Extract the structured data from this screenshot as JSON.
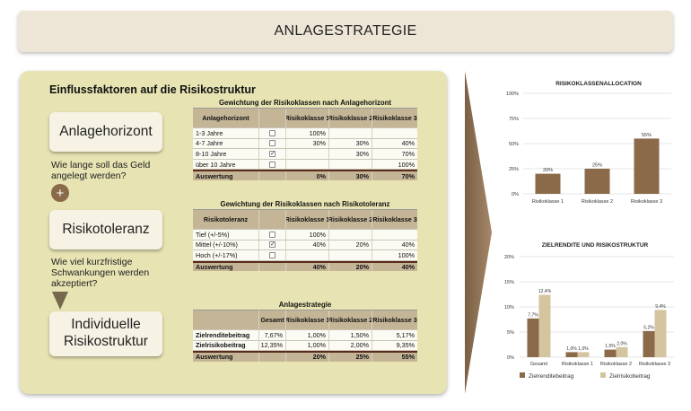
{
  "header": {
    "title": "ANLAGESTRATEGIE"
  },
  "panel": {
    "heading": "Einflussfaktoren auf die Risikostruktur",
    "plus_symbol": "+",
    "cards": {
      "horizon": "Anlagehorizont",
      "tolerance": "Risikotoleranz",
      "result_line1": "Individuelle",
      "result_line2": "Risikostruktur"
    },
    "questions": {
      "q1_line1": "Wie lange soll das Geld",
      "q1_line2": "angelegt werden?",
      "q2_line1": "Wie viel kurzfristige",
      "q2_line2": "Schwankungen werden",
      "q2_line3": "akzeptiert?"
    }
  },
  "table1": {
    "title": "Gewichtung der Risikoklassen nach Anlagehorizont",
    "headers": [
      "Anlagehorizont",
      "",
      "Risikoklasse 1",
      "Risikoklasse 2",
      "Risikoklasse 3"
    ],
    "rows": [
      {
        "label": "1-3 Jahre",
        "checked": false,
        "k1": "100%",
        "k2": "",
        "k3": ""
      },
      {
        "label": "4-7 Jahre",
        "checked": false,
        "k1": "30%",
        "k2": "30%",
        "k3": "40%"
      },
      {
        "label": "8-10 Jahre",
        "checked": true,
        "k1": "",
        "k2": "30%",
        "k3": "70%"
      },
      {
        "label": "über 10 Jahre",
        "checked": false,
        "k1": "",
        "k2": "",
        "k3": "100%"
      }
    ],
    "footer": {
      "label": "Auswertung",
      "k1": "0%",
      "k2": "30%",
      "k3": "70%"
    }
  },
  "table2": {
    "title": "Gewichtung der Risikoklassen nach Risikotoleranz",
    "headers": [
      "Risikotoleranz",
      "",
      "Risikoklasse 1",
      "Risikoklasse 2",
      "Risikoklasse 3"
    ],
    "rows": [
      {
        "label": "Tief (+/-5%)",
        "checked": false,
        "k1": "100%",
        "k2": "",
        "k3": ""
      },
      {
        "label": "Mittel (+/-10%)",
        "checked": true,
        "k1": "40%",
        "k2": "20%",
        "k3": "40%"
      },
      {
        "label": "Hoch (+/-17%)",
        "checked": false,
        "k1": "",
        "k2": "",
        "k3": "100%"
      }
    ],
    "footer": {
      "label": "Auswertung",
      "k1": "40%",
      "k2": "20%",
      "k3": "40%"
    }
  },
  "table3": {
    "title": "Anlagestrategie",
    "headers": [
      "",
      "Gesamt",
      "Risikoklasse 1",
      "Risikoklasse 2",
      "Risikoklasse 3"
    ],
    "rows": [
      {
        "label": "Zielrenditebeitrag",
        "g": "7,67%",
        "k1": "1,00%",
        "k2": "1,50%",
        "k3": "5,17%"
      },
      {
        "label": "Zielrisikobeitrag",
        "g": "12,35%",
        "k1": "1,00%",
        "k2": "2,00%",
        "k3": "9,35%"
      }
    ],
    "footer": {
      "label": "Auswertung",
      "g": "",
      "k1": "20%",
      "k2": "25%",
      "k3": "55%"
    }
  },
  "colors": {
    "dark": "#8b6a4a",
    "light": "#d4c4a0"
  },
  "chart_data": [
    {
      "type": "bar",
      "title": "RISIKOKLASSENALLOCATION",
      "categories": [
        "Risikoklasse 1",
        "Risikoklasse 2",
        "Risikoklasse 3"
      ],
      "values": [
        20,
        25,
        55
      ],
      "value_labels": [
        "20%",
        "25%",
        "55%"
      ],
      "yticks": [
        "0%",
        "25%",
        "50%",
        "75%",
        "100%"
      ],
      "ylim": [
        0,
        100
      ]
    },
    {
      "type": "bar",
      "title": "ZIELRENDITE UND RISIKOSTRUKTUR",
      "categories": [
        "Gesamt",
        "Risikoklasse 1",
        "Risikoklasse 2",
        "Risikoklasse 3"
      ],
      "series": [
        {
          "name": "Zielrenditebeitrag",
          "values": [
            7.7,
            1.0,
            1.5,
            5.2
          ],
          "labels": [
            "7,7%",
            "1,0%",
            "1,5%",
            "5,2%"
          ]
        },
        {
          "name": "Zielrisikobeitrag",
          "values": [
            12.4,
            1.0,
            2.0,
            9.4
          ],
          "labels": [
            "12,4%",
            "1,0%",
            "2,0%",
            "9,4%"
          ]
        }
      ],
      "yticks": [
        "0%",
        "5%",
        "10%",
        "15%",
        "20%"
      ],
      "ylim": [
        0,
        20
      ],
      "legend": "bottom"
    }
  ]
}
